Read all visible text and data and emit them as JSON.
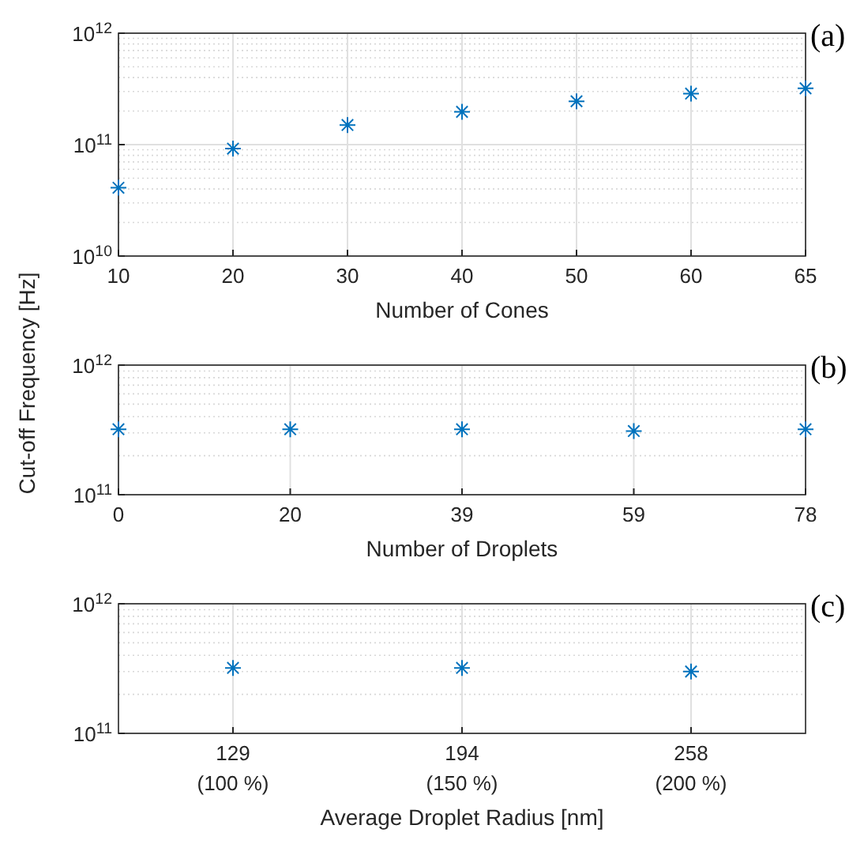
{
  "chart_data": [
    {
      "type": "scatter",
      "xlabel": "Number of Cones",
      "categories": [
        "10",
        "20",
        "30",
        "40",
        "50",
        "60",
        "65"
      ],
      "series": [
        {
          "color": "#0072bd",
          "values": [
            41000000000.0,
            92000000000.0,
            150000000000.0,
            197000000000.0,
            245000000000.0,
            287000000000.0,
            320000000000.0
          ]
        }
      ],
      "ylim": [
        10000000000.0,
        1000000000000.0
      ],
      "yticks": [
        {
          "value": 10000000000.0,
          "label": "10$^{10}$"
        },
        {
          "value": 100000000000.0,
          "label": "10$^{11}$"
        },
        {
          "value": 1000000000000.0,
          "label": "10$^{12}$"
        }
      ],
      "log": true,
      "grid": true,
      "marker": "cross",
      "annotations": [
        "(a)"
      ]
    },
    {
      "type": "scatter",
      "xlabel": "Number of Droplets",
      "ylabel": "Cut-off Frequency [Hz]",
      "categories": [
        "0",
        "20",
        "39",
        "59",
        "78"
      ],
      "series": [
        {
          "color": "#0072bd",
          "values": [
            320000000000.0,
            320000000000.0,
            320000000000.0,
            310000000000.0,
            320000000000.0
          ]
        }
      ],
      "ylim": [
        100000000000.0,
        1000000000000.0
      ],
      "yticks": [
        {
          "value": 100000000000.0,
          "label": "10$^{11}$"
        },
        {
          "value": 1000000000000.0,
          "label": "10$^{12}$"
        }
      ],
      "log": true,
      "grid": true,
      "marker": "cross",
      "annotations": [
        "(b)"
      ]
    },
    {
      "type": "scatter",
      "xlabel": "Average Droplet Radius [nm]",
      "categories": [
        "129\n(100 %)",
        "194\n(150 %)",
        "258\n(200 %)"
      ],
      "series": [
        {
          "color": "#0072bd",
          "values": [
            320000000000.0,
            320000000000.0,
            300000000000.0
          ]
        }
      ],
      "ylim": [
        100000000000.0,
        1000000000000.0
      ],
      "yticks": [
        {
          "value": 100000000000.0,
          "label": "10$^{11}$"
        },
        {
          "value": 1000000000000.0,
          "label": "10$^{12}$"
        }
      ],
      "log": true,
      "grid": true,
      "marker": "cross",
      "annotations": [
        "(c)"
      ]
    }
  ]
}
